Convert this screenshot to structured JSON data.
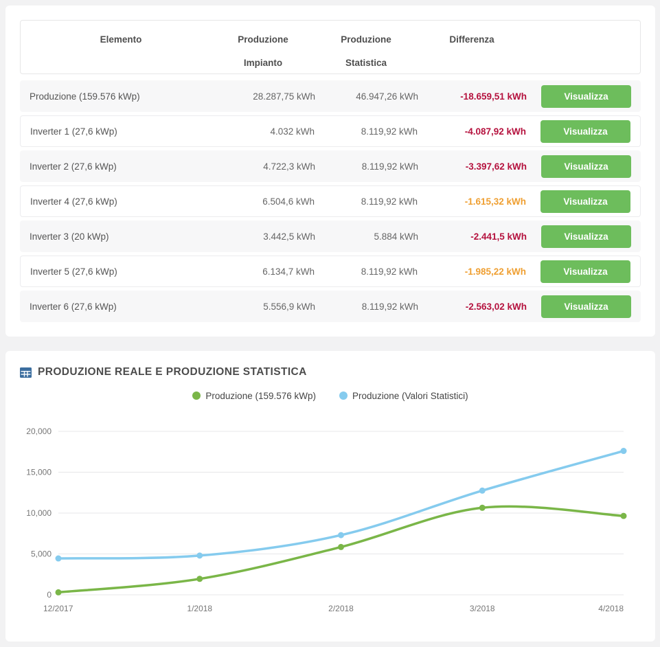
{
  "table": {
    "headers": [
      {
        "line1": "Elemento",
        "line2": ""
      },
      {
        "line1": "Produzione",
        "line2": "Impianto"
      },
      {
        "line1": "Produzione",
        "line2": "Statistica"
      },
      {
        "line1": "Differenza",
        "line2": ""
      }
    ],
    "action_label": "Visualizza",
    "rows": [
      {
        "element": "Produzione (159.576 kWp)",
        "impianto": "28.287,75 kWh",
        "statistica": "46.947,26 kWh",
        "differenza": "-18.659,51 kWh",
        "diff_color": "red"
      },
      {
        "element": "Inverter 1 (27,6 kWp)",
        "impianto": "4.032 kWh",
        "statistica": "8.119,92 kWh",
        "differenza": "-4.087,92 kWh",
        "diff_color": "red"
      },
      {
        "element": "Inverter 2 (27,6 kWp)",
        "impianto": "4.722,3 kWh",
        "statistica": "8.119,92 kWh",
        "differenza": "-3.397,62 kWh",
        "diff_color": "red"
      },
      {
        "element": "Inverter 4 (27,6 kWp)",
        "impianto": "6.504,6 kWh",
        "statistica": "8.119,92 kWh",
        "differenza": "-1.615,32 kWh",
        "diff_color": "orange"
      },
      {
        "element": "Inverter 3 (20 kWp)",
        "impianto": "3.442,5 kWh",
        "statistica": "5.884 kWh",
        "differenza": "-2.441,5 kWh",
        "diff_color": "red"
      },
      {
        "element": "Inverter 5 (27,6 kWp)",
        "impianto": "6.134,7 kWh",
        "statistica": "8.119,92 kWh",
        "differenza": "-1.985,22 kWh",
        "diff_color": "orange"
      },
      {
        "element": "Inverter 6 (27,6 kWp)",
        "impianto": "5.556,9 kWh",
        "statistica": "8.119,92 kWh",
        "differenza": "-2.563,02 kWh",
        "diff_color": "red"
      }
    ]
  },
  "chart": {
    "title": "PRODUZIONE REALE E PRODUZIONE STATISTICA",
    "chart_data": {
      "type": "line",
      "x": [
        "12/2017",
        "1/2018",
        "2/2018",
        "3/2018",
        "4/2018"
      ],
      "series": [
        {
          "name": "Produzione (159.576 kWp)",
          "color": "#7ab648",
          "values": [
            300,
            1950,
            5850,
            10650,
            9650
          ]
        },
        {
          "name": "Produzione (Valori Statistici)",
          "color": "#85cbee",
          "values": [
            4450,
            4800,
            7300,
            12750,
            17600
          ]
        }
      ],
      "ylim": [
        0,
        20000
      ],
      "yticks": [
        0,
        5000,
        10000,
        15000,
        20000
      ],
      "ytick_labels": [
        "0",
        "5,000",
        "10,000",
        "15,000",
        "20,000"
      ],
      "grid": true,
      "legend_position": "top-center"
    }
  },
  "colors": {
    "diff_red": "#b5123e",
    "diff_orange": "#ef9f31",
    "button_green": "#6dbd5c",
    "title_icon_blue": "#3c6e9f",
    "series_green": "#7ab648",
    "series_blue": "#85cbee",
    "grid_gray": "#e7e7e8"
  }
}
